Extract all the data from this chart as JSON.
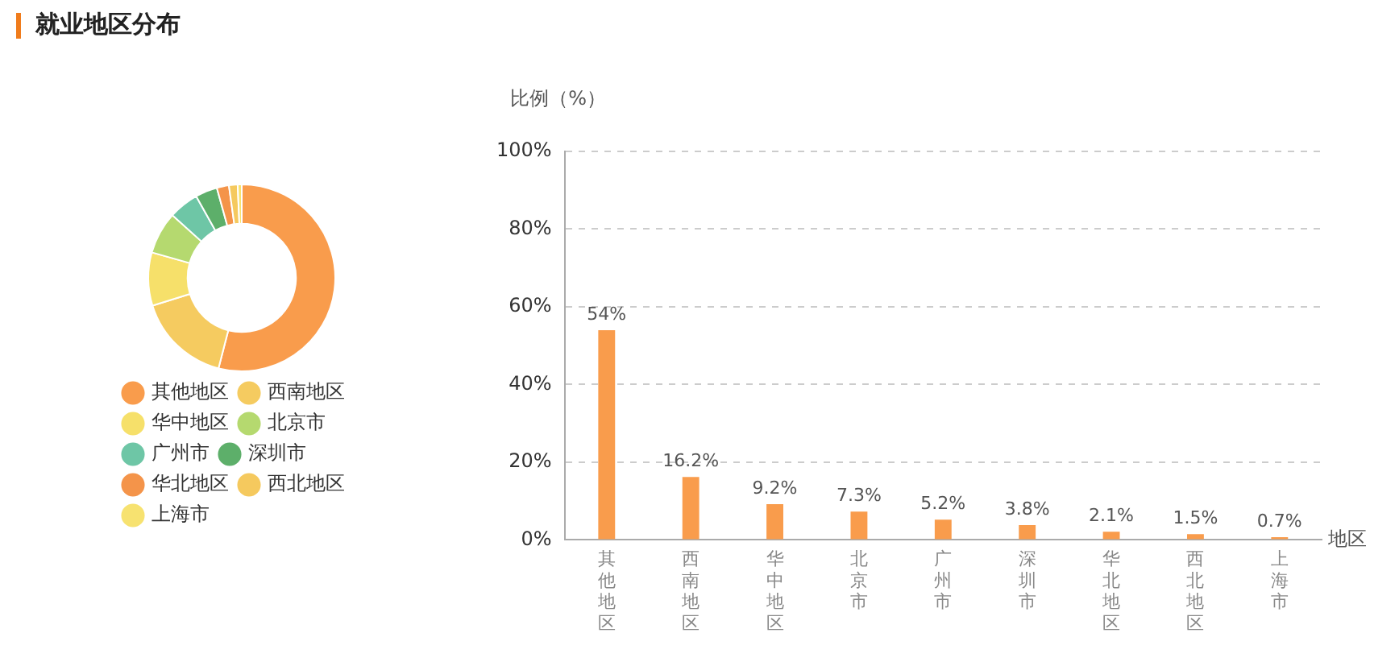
{
  "chart_data": [
    {
      "type": "donut",
      "title": "就业地区分布",
      "categories": [
        "其他地区",
        "西南地区",
        "华中地区",
        "北京市",
        "广州市",
        "深圳市",
        "华北地区",
        "西北地区",
        "上海市"
      ],
      "values": [
        54,
        16.2,
        9.2,
        7.3,
        5.2,
        3.8,
        2.1,
        1.5,
        0.7
      ],
      "colors": [
        "#f99c4c",
        "#f5cb60",
        "#f6e06a",
        "#b5d96f",
        "#6ec6a6",
        "#5daf6a",
        "#f4944a",
        "#f5c95e",
        "#f7e270"
      ],
      "legend": "bottom left"
    },
    {
      "type": "bar",
      "ylabel": "比例（%）",
      "xlabel": "地区",
      "categories": [
        "其他地区",
        "西南地区",
        "华中地区",
        "北京市",
        "广州市",
        "深圳市",
        "华北地区",
        "西北地区",
        "上海市"
      ],
      "values": [
        54,
        16.2,
        9.2,
        7.3,
        5.2,
        3.8,
        2.1,
        1.5,
        0.7
      ],
      "value_labels": [
        "54%",
        "16.2%",
        "9.2%",
        "7.3%",
        "5.2%",
        "3.8%",
        "2.1%",
        "1.5%",
        "0.7%"
      ],
      "color": "#f99c4c",
      "ylim": [
        0,
        100
      ],
      "yticks": [
        {
          "value": 0,
          "label": "0%"
        },
        {
          "value": 20,
          "label": "20%"
        },
        {
          "value": 40,
          "label": "40%"
        },
        {
          "value": 60,
          "label": "60%"
        },
        {
          "value": 80,
          "label": "80%"
        },
        {
          "value": 100,
          "label": "100%"
        }
      ],
      "grid": "y",
      "legend": false
    }
  ]
}
